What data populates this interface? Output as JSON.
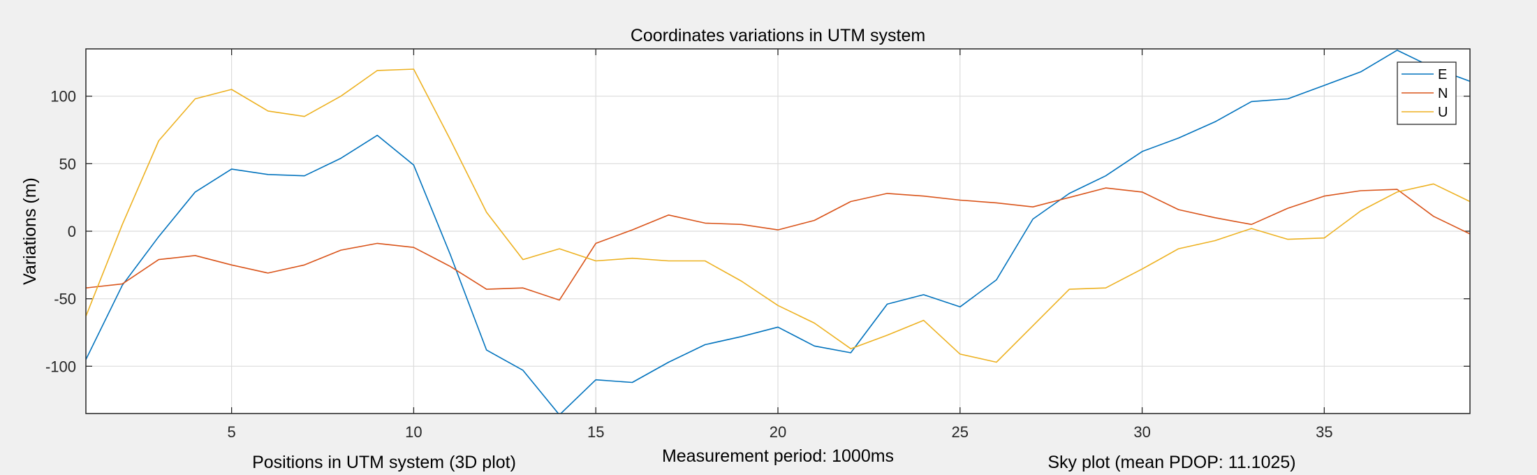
{
  "chart_data": {
    "type": "line",
    "title": "Coordinates variations in UTM system",
    "xlabel": "Measurement period: 1000ms",
    "ylabel": "Variations (m)",
    "xlim": [
      1,
      39
    ],
    "ylim": [
      -135,
      135
    ],
    "xticks": [
      5,
      10,
      15,
      20,
      25,
      30,
      35
    ],
    "yticks": [
      -100,
      -50,
      0,
      50,
      100
    ],
    "grid": true,
    "legend_position": "top-right",
    "x": [
      1,
      2,
      3,
      4,
      5,
      6,
      7,
      8,
      9,
      10,
      11,
      12,
      13,
      14,
      15,
      16,
      17,
      18,
      19,
      20,
      21,
      22,
      23,
      24,
      25,
      26,
      27,
      28,
      29,
      30,
      31,
      32,
      33,
      34,
      35,
      36,
      37,
      38,
      39
    ],
    "series": [
      {
        "name": "E",
        "color": "#0072bd",
        "values": [
          -95,
          -40,
          -4,
          29,
          46,
          42,
          41,
          54,
          71,
          49,
          -17,
          -88,
          -103,
          -136,
          -110,
          -112,
          -97,
          -84,
          -78,
          -71,
          -85,
          -90,
          -54,
          -47,
          -56,
          -36,
          9,
          28,
          41,
          59,
          69,
          81,
          96,
          98,
          108,
          118,
          134,
          121,
          111
        ]
      },
      {
        "name": "N",
        "color": "#d95319",
        "values": [
          -42,
          -39,
          -21,
          -18,
          -25,
          -31,
          -25,
          -14,
          -9,
          -12,
          -26,
          -43,
          -42,
          -51,
          -9,
          1,
          12,
          6,
          5,
          1,
          8,
          22,
          28,
          26,
          23,
          21,
          18,
          25,
          32,
          29,
          16,
          10,
          5,
          17,
          26,
          30,
          31,
          11,
          -2
        ]
      },
      {
        "name": "U",
        "color": "#edb120",
        "values": [
          -63,
          5,
          67,
          98,
          105,
          89,
          85,
          100,
          119,
          120,
          68,
          14,
          -21,
          -13,
          -22,
          -20,
          -22,
          -22,
          -37,
          -55,
          -68,
          -87,
          -77,
          -66,
          -91,
          -97,
          -70,
          -43,
          -42,
          -28,
          -13,
          -7,
          2,
          -6,
          -5,
          15,
          29,
          35,
          22
        ]
      }
    ]
  },
  "below_titles": {
    "left": "Positions in UTM system (3D plot)",
    "right": "Sky plot (mean PDOP: 11.1025)"
  }
}
